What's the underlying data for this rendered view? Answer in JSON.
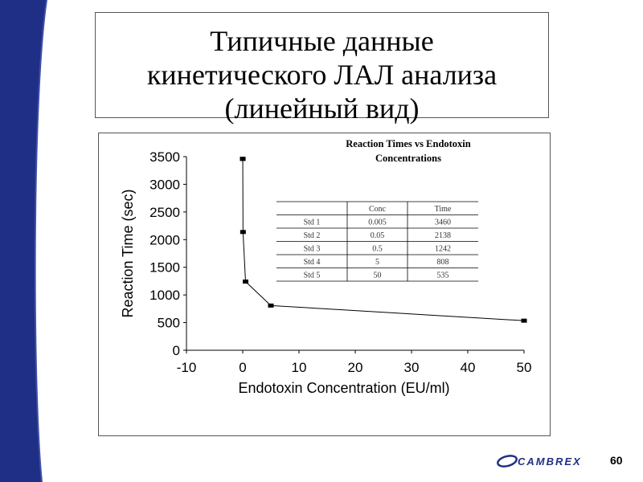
{
  "slide": {
    "title_lines": [
      "Типичные данные",
      "кинетического ЛАЛ анализа",
      "(линейный вид)"
    ],
    "number": "60",
    "logo_text": "CAMBREX",
    "colors": {
      "left_bar": "#1f2f86",
      "accent": "#000000",
      "line": "#000000"
    }
  },
  "chart_data": {
    "type": "line",
    "title": "Reaction Times vs Endotoxin Concentrations",
    "title_lines": [
      "Reaction Times vs Endotoxin",
      "Concentrations"
    ],
    "xlabel": "Endotoxin Concentration (EU/ml)",
    "ylabel": "Reaction Time (sec)",
    "xlim": [
      -10,
      50
    ],
    "ylim": [
      0,
      3500
    ],
    "xticks": [
      "-10",
      "0",
      "10",
      "20",
      "30",
      "40",
      "50"
    ],
    "yticks": [
      "0",
      "500",
      "1000",
      "1500",
      "2000",
      "2500",
      "3000",
      "3500"
    ],
    "grid": "none",
    "series": [
      {
        "x": [
          0.005,
          0.005,
          0.05,
          0.5,
          5,
          50
        ],
        "values": [
          3460,
          3460,
          2138,
          1242,
          808,
          535
        ]
      }
    ],
    "table": {
      "headers": [
        "",
        "Conc",
        "Time"
      ],
      "rows": [
        [
          "Std 1",
          "0.005",
          "3460"
        ],
        [
          "Std 2",
          "0.05",
          "2138"
        ],
        [
          "Std 3",
          "0.5",
          "1242"
        ],
        [
          "Std 4",
          "5",
          "808"
        ],
        [
          "Std 5",
          "50",
          "535"
        ]
      ]
    }
  }
}
